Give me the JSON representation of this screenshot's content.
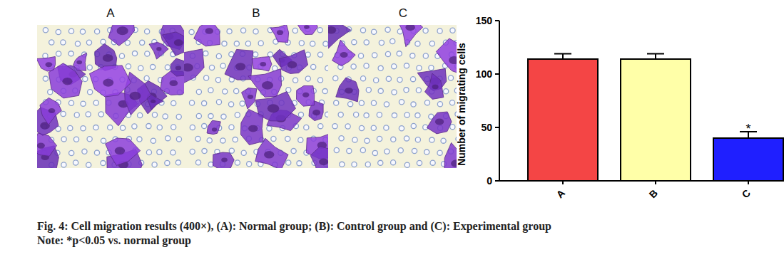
{
  "chart_data": {
    "type": "bar",
    "ylabel": "Number of migrating cells",
    "categories": [
      "A",
      "B",
      "C"
    ],
    "values": [
      114,
      114,
      40
    ],
    "errors": [
      5,
      5,
      6
    ],
    "colors": [
      "#f44545",
      "#ffffa8",
      "#1f1fff"
    ],
    "ylim": [
      0,
      150
    ],
    "yticks": [
      0,
      50,
      100,
      150
    ],
    "annotations": [
      {
        "text": "*",
        "category": "C"
      }
    ]
  },
  "panels": [
    {
      "label": "A"
    },
    {
      "label": "B"
    },
    {
      "label": "C"
    }
  ],
  "caption": {
    "title": "Fig. 4: Cell migration results (400×), (A): Normal group; (B): Control group and (C): Experimental group",
    "note": "Note: *p<0.05 vs. normal group"
  }
}
